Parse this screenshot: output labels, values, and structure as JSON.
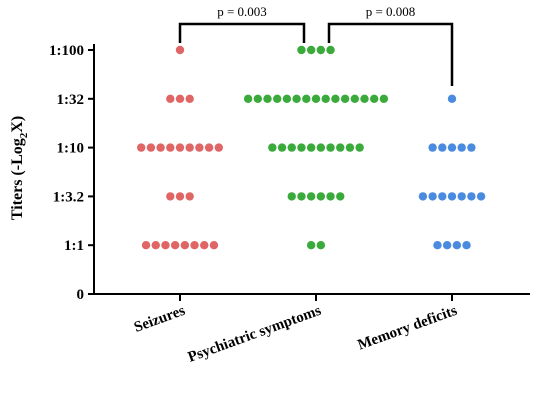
{
  "chart_data": {
    "type": "scatter",
    "ylabel_main": "Titers (-Log",
    "ylabel_sub": "2",
    "ylabel_tail": "X)",
    "y_ticks": [
      {
        "value": 0,
        "label": "0"
      },
      {
        "value": 1,
        "label": "1:1"
      },
      {
        "value": 2,
        "label": "1:3.2"
      },
      {
        "value": 3,
        "label": "1:10"
      },
      {
        "value": 4,
        "label": "1:32"
      },
      {
        "value": 5,
        "label": "1:100"
      }
    ],
    "ylim": [
      0,
      5
    ],
    "categories": [
      "Seizures",
      "Psychiatric symptoms",
      "Memory deficits"
    ],
    "series": [
      {
        "name": "Seizures",
        "color": "#e06666",
        "counts": [
          {
            "y": 5,
            "n": 1
          },
          {
            "y": 4,
            "n": 3
          },
          {
            "y": 3,
            "n": 9
          },
          {
            "y": 2,
            "n": 3
          },
          {
            "y": 1,
            "n": 8
          }
        ]
      },
      {
        "name": "Psychiatric symptoms",
        "color": "#3aaa3a",
        "counts": [
          {
            "y": 5,
            "n": 4
          },
          {
            "y": 4,
            "n": 15
          },
          {
            "y": 3,
            "n": 10
          },
          {
            "y": 2,
            "n": 6
          },
          {
            "y": 1,
            "n": 2
          }
        ]
      },
      {
        "name": "Memory deficits",
        "color": "#4a8be0",
        "counts": [
          {
            "y": 4,
            "n": 1
          },
          {
            "y": 3,
            "n": 5
          },
          {
            "y": 2,
            "n": 7
          },
          {
            "y": 1,
            "n": 4
          }
        ]
      }
    ],
    "annotations": [
      {
        "from": 0,
        "to": 1,
        "label": "p = 0.003"
      },
      {
        "from": 1,
        "to": 2,
        "label": "p = 0.008"
      }
    ]
  }
}
